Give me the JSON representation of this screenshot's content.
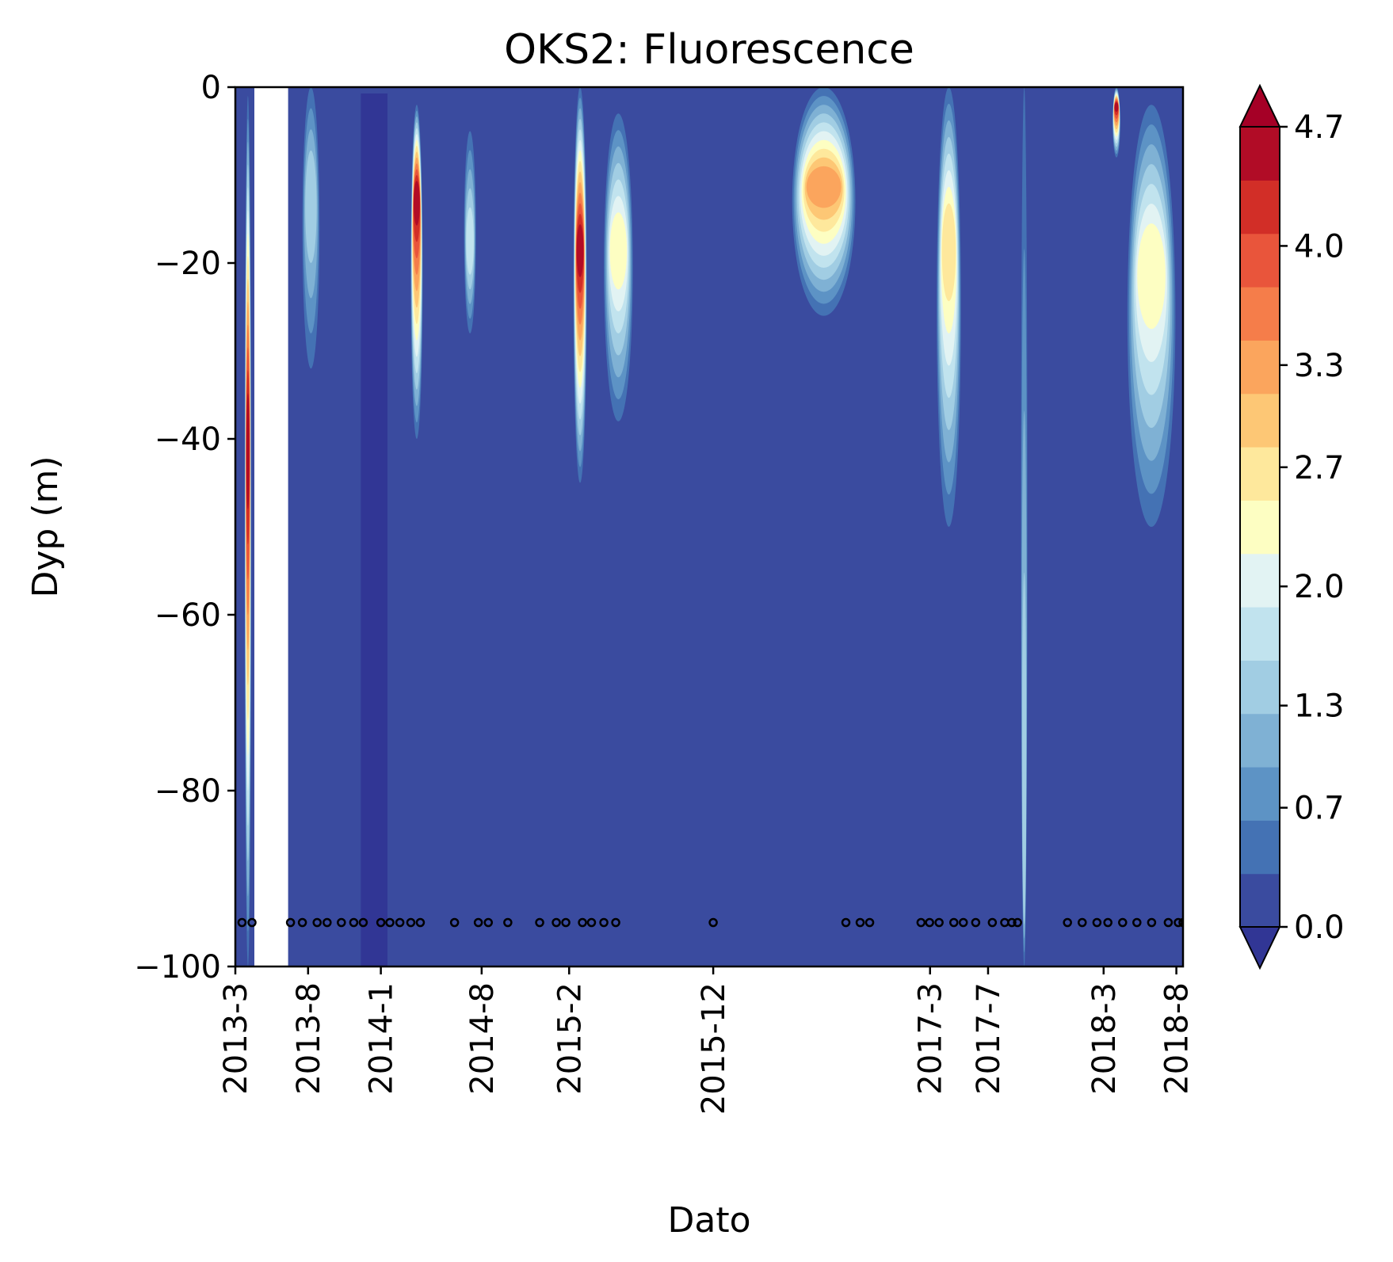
{
  "chart_data": {
    "type": "heatmap",
    "title": "OKS2: Fluorescence",
    "xlabel": "Dato",
    "ylabel": "Dyp (m)",
    "ylim": [
      -100,
      0
    ],
    "x_tick_labels": [
      "2013-3",
      "2013-8",
      "2014-1",
      "2014-8",
      "2015-2",
      "2015-12",
      "2017-3",
      "2017-7",
      "2018-3",
      "2018-8"
    ],
    "x_tick_dates": [
      "2013-03-01",
      "2013-08-01",
      "2014-01-01",
      "2014-08-01",
      "2015-02-01",
      "2015-12-01",
      "2017-03-01",
      "2017-07-01",
      "2018-03-01",
      "2018-08-01"
    ],
    "x_range": [
      "2013-03-01",
      "2018-08-15"
    ],
    "y_ticks": [
      0,
      -20,
      -40,
      -60,
      -80,
      -100
    ],
    "y_tick_labels": [
      "0",
      "−20",
      "−40",
      "−60",
      "−80",
      "−100"
    ],
    "colorbar": {
      "min": 0.0,
      "max": 4.7,
      "levels": 15,
      "extend": "both",
      "tick_values": [
        0.0,
        0.7,
        1.3,
        2.0,
        2.7,
        3.3,
        4.0,
        4.7
      ],
      "tick_labels": [
        "0.0",
        "0.7",
        "1.3",
        "2.0",
        "2.7",
        "3.3",
        "4.0",
        "4.7"
      ],
      "colors": [
        "#3a4b9f",
        "#4472b4",
        "#5d93c5",
        "#7fb1d4",
        "#a1cde3",
        "#c1e3ee",
        "#e2f3f3",
        "#fdfec2",
        "#fee89c",
        "#fdc775",
        "#fba55d",
        "#f57d4a",
        "#e9553b",
        "#d22e27",
        "#b10c26"
      ],
      "under_color": "#313695",
      "over_color": "#a50026"
    },
    "missing_data_color": "#ffffff",
    "sample_dates": [
      "2013-03-15",
      "2013-04-05",
      "2013-06-25",
      "2013-07-20",
      "2013-08-20",
      "2013-09-10",
      "2013-10-10",
      "2013-11-05",
      "2013-11-25",
      "2014-01-01",
      "2014-01-20",
      "2014-02-10",
      "2014-03-05",
      "2014-03-25",
      "2014-06-05",
      "2014-07-25",
      "2014-08-15",
      "2014-09-25",
      "2014-12-01",
      "2015-01-05",
      "2015-01-25",
      "2015-03-01",
      "2015-03-20",
      "2015-04-15",
      "2015-05-10",
      "2015-12-01",
      "2016-09-05",
      "2016-10-05",
      "2016-10-25",
      "2017-02-10",
      "2017-02-28",
      "2017-03-20",
      "2017-04-20",
      "2017-05-10",
      "2017-06-05",
      "2017-07-10",
      "2017-08-05",
      "2017-08-20",
      "2017-09-01",
      "2017-12-15",
      "2018-01-15",
      "2018-02-15",
      "2018-03-10",
      "2018-04-10",
      "2018-05-10",
      "2018-06-10",
      "2018-07-15",
      "2018-08-05",
      "2018-08-15"
    ],
    "sample_depth": -95,
    "blooms": [
      {
        "start": "2013-03-25",
        "end": "2013-03-30",
        "depth_top": -1,
        "depth_bottom": -100,
        "peak_depth": -40,
        "peak": 4.7
      },
      {
        "start": "2013-07-20",
        "end": "2013-08-25",
        "depth_top": 0,
        "depth_bottom": -32,
        "peak_depth": -12,
        "peak": 1.4
      },
      {
        "start": "2014-03-05",
        "end": "2014-03-30",
        "depth_top": -2,
        "depth_bottom": -40,
        "peak_depth": -12,
        "peak": 4.7
      },
      {
        "start": "2014-06-25",
        "end": "2014-07-20",
        "depth_top": -5,
        "depth_bottom": -28,
        "peak_depth": -18,
        "peak": 1.6
      },
      {
        "start": "2015-02-10",
        "end": "2015-03-10",
        "depth_top": 0,
        "depth_bottom": -45,
        "peak_depth": -18,
        "peak": 4.7
      },
      {
        "start": "2015-04-15",
        "end": "2015-06-15",
        "depth_top": -3,
        "depth_bottom": -38,
        "peak_depth": -18,
        "peak": 2.5
      },
      {
        "start": "2016-05-15",
        "end": "2016-09-25",
        "depth_top": 0,
        "depth_bottom": -26,
        "peak_depth": -11,
        "peak": 3.2
      },
      {
        "start": "2017-03-15",
        "end": "2017-05-05",
        "depth_top": 0,
        "depth_bottom": -50,
        "peak_depth": -17,
        "peak": 2.8
      },
      {
        "start": "2017-09-10",
        "end": "2017-09-20",
        "depth_top": 0,
        "depth_bottom": -100,
        "peak_depth": -92,
        "peak": 1.4
      },
      {
        "start": "2018-03-20",
        "end": "2018-04-05",
        "depth_top": 0,
        "depth_bottom": -8,
        "peak_depth": -2,
        "peak": 4.7
      },
      {
        "start": "2018-04-20",
        "end": "2018-07-30",
        "depth_top": -2,
        "depth_bottom": -50,
        "peak_depth": -20,
        "peak": 2.4
      }
    ]
  }
}
